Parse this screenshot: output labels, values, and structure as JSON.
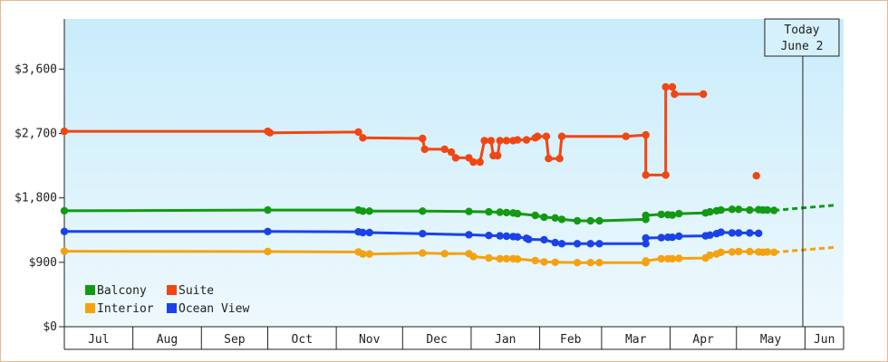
{
  "chart_data": {
    "type": "line",
    "title": "",
    "xlabel": "",
    "ylabel": "",
    "ylim": [
      0,
      4300
    ],
    "y_ticks": [
      0,
      900,
      1800,
      2700,
      3600
    ],
    "y_tick_labels": [
      "$0",
      "$900",
      "$1,800",
      "$2,700",
      "$3,600"
    ],
    "months": [
      "Jul",
      "Aug",
      "Sep",
      "Oct",
      "Nov",
      "Dec",
      "Jan",
      "Feb",
      "Mar",
      "Apr",
      "May",
      "Jun"
    ],
    "grid": false,
    "legend_position": "bottom-left",
    "today_marker": {
      "line1": "Today",
      "line2": "June 2",
      "day": 334
    },
    "series": [
      {
        "name": "Balcony",
        "color": "#139a13",
        "points": [
          [
            0,
            1620
          ],
          [
            92,
            1630
          ],
          [
            133,
            1630
          ],
          [
            135,
            1615
          ],
          [
            138,
            1615
          ],
          [
            162,
            1615
          ],
          [
            183,
            1610
          ],
          [
            192,
            1605
          ],
          [
            197,
            1600
          ],
          [
            200,
            1595
          ],
          [
            203,
            1590
          ],
          [
            205,
            1580
          ],
          [
            213,
            1555
          ],
          [
            217,
            1530
          ],
          [
            222,
            1520
          ],
          [
            225,
            1500
          ],
          [
            232,
            1480
          ],
          [
            238,
            1480
          ],
          [
            242,
            1480
          ],
          [
            263,
            1500
          ],
          [
            263,
            1555
          ],
          [
            270,
            1570
          ],
          [
            273,
            1565
          ],
          [
            275,
            1560
          ],
          [
            278,
            1580
          ],
          [
            290,
            1590
          ],
          [
            292,
            1605
          ],
          [
            295,
            1620
          ],
          [
            297,
            1630
          ],
          [
            302,
            1640
          ],
          [
            305,
            1640
          ],
          [
            310,
            1630
          ],
          [
            314,
            1635
          ],
          [
            316,
            1630
          ],
          [
            318,
            1630
          ],
          [
            321,
            1625
          ]
        ],
        "projection": [
          [
            321,
            1625
          ],
          [
            349,
            1700
          ]
        ]
      },
      {
        "name": "Interior",
        "color": "#f5a211",
        "points": [
          [
            0,
            1055
          ],
          [
            92,
            1050
          ],
          [
            133,
            1045
          ],
          [
            135,
            1015
          ],
          [
            138,
            1015
          ],
          [
            162,
            1030
          ],
          [
            172,
            1020
          ],
          [
            183,
            1020
          ],
          [
            185,
            980
          ],
          [
            192,
            960
          ],
          [
            197,
            950
          ],
          [
            200,
            950
          ],
          [
            203,
            950
          ],
          [
            205,
            945
          ],
          [
            213,
            925
          ],
          [
            217,
            905
          ],
          [
            222,
            900
          ],
          [
            232,
            895
          ],
          [
            238,
            895
          ],
          [
            242,
            895
          ],
          [
            263,
            895
          ],
          [
            263,
            920
          ],
          [
            270,
            950
          ],
          [
            273,
            950
          ],
          [
            275,
            950
          ],
          [
            278,
            955
          ],
          [
            290,
            960
          ],
          [
            292,
            1000
          ],
          [
            295,
            1015
          ],
          [
            297,
            1040
          ],
          [
            302,
            1045
          ],
          [
            305,
            1050
          ],
          [
            310,
            1050
          ],
          [
            314,
            1045
          ],
          [
            316,
            1040
          ],
          [
            318,
            1045
          ],
          [
            321,
            1040
          ]
        ],
        "projection": [
          [
            321,
            1040
          ],
          [
            349,
            1110
          ]
        ]
      },
      {
        "name": "Suite",
        "color": "#f24612",
        "points": [
          [
            0,
            2730
          ],
          [
            92,
            2730
          ],
          [
            93,
            2710
          ],
          [
            133,
            2720
          ],
          [
            135,
            2640
          ],
          [
            162,
            2630
          ],
          [
            163,
            2480
          ],
          [
            172,
            2480
          ],
          [
            175,
            2440
          ],
          [
            177,
            2360
          ],
          [
            183,
            2360
          ],
          [
            185,
            2300
          ],
          [
            188,
            2300
          ],
          [
            190,
            2600
          ],
          [
            193,
            2600
          ],
          [
            194,
            2390
          ],
          [
            196,
            2390
          ],
          [
            197,
            2600
          ],
          [
            200,
            2600
          ],
          [
            203,
            2600
          ],
          [
            205,
            2610
          ],
          [
            209,
            2610
          ],
          [
            213,
            2640
          ],
          [
            214,
            2660
          ],
          [
            218,
            2660
          ],
          [
            219,
            2350
          ],
          [
            224,
            2350
          ],
          [
            225,
            2660
          ],
          [
            254,
            2660
          ],
          [
            263,
            2680
          ],
          [
            263,
            2120
          ],
          [
            272,
            2120
          ],
          [
            272,
            3350
          ],
          [
            275,
            3350
          ],
          [
            276,
            3250
          ],
          [
            289,
            3250
          ]
        ],
        "isolated": [
          [
            313,
            2110
          ]
        ]
      },
      {
        "name": "Ocean View",
        "color": "#1a42e8",
        "points": [
          [
            0,
            1330
          ],
          [
            92,
            1330
          ],
          [
            133,
            1325
          ],
          [
            135,
            1315
          ],
          [
            138,
            1315
          ],
          [
            162,
            1300
          ],
          [
            183,
            1285
          ],
          [
            192,
            1275
          ],
          [
            197,
            1270
          ],
          [
            200,
            1265
          ],
          [
            203,
            1260
          ],
          [
            205,
            1255
          ],
          [
            209,
            1235
          ],
          [
            210,
            1220
          ],
          [
            217,
            1215
          ],
          [
            222,
            1175
          ],
          [
            225,
            1160
          ],
          [
            232,
            1160
          ],
          [
            238,
            1160
          ],
          [
            242,
            1160
          ],
          [
            263,
            1160
          ],
          [
            263,
            1240
          ],
          [
            270,
            1245
          ],
          [
            273,
            1250
          ],
          [
            275,
            1250
          ],
          [
            278,
            1265
          ],
          [
            290,
            1270
          ],
          [
            292,
            1280
          ],
          [
            295,
            1300
          ],
          [
            297,
            1320
          ],
          [
            302,
            1310
          ],
          [
            305,
            1310
          ],
          [
            310,
            1310
          ],
          [
            314,
            1305
          ]
        ]
      }
    ]
  }
}
